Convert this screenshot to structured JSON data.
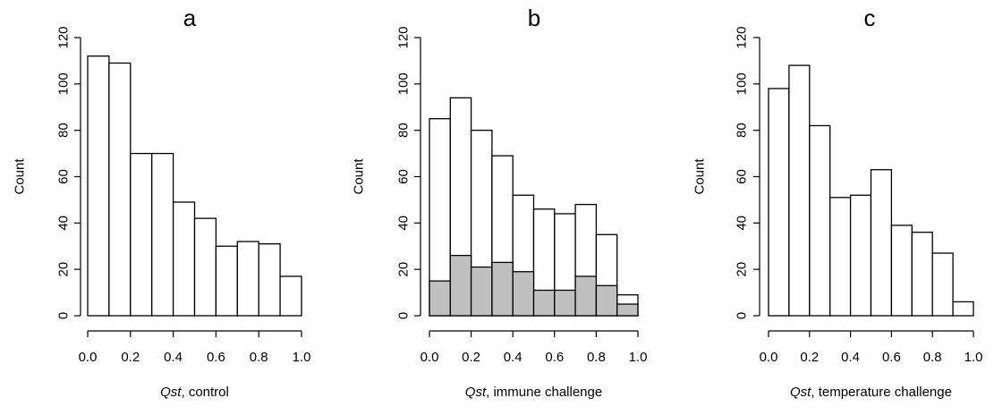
{
  "figure": {
    "panels": [
      {
        "letter": "a",
        "xlabel_italic": "Qst",
        "xlabel_rest": ", control",
        "ylabel": "Count"
      },
      {
        "letter": "b",
        "xlabel_italic": "Qst",
        "xlabel_rest": ", immune challenge",
        "ylabel": "Count"
      },
      {
        "letter": "c",
        "xlabel_italic": "Qst",
        "xlabel_rest": ", temperature challenge",
        "ylabel": "Count"
      }
    ]
  },
  "chart_data": [
    {
      "type": "bar",
      "title": "a",
      "xlabel": "Qst, control",
      "ylabel": "Count",
      "bin_edges": [
        0.0,
        0.1,
        0.2,
        0.3,
        0.4,
        0.5,
        0.6,
        0.7,
        0.8,
        0.9,
        1.0
      ],
      "series": [
        {
          "values": [
            112,
            109,
            70,
            70,
            49,
            42,
            30,
            32,
            31,
            17
          ],
          "color": "#ffffff"
        }
      ],
      "xlim": [
        0.0,
        1.0
      ],
      "ylim": [
        0,
        120
      ],
      "xticks": [
        "0.0",
        "0.2",
        "0.4",
        "0.6",
        "0.8",
        "1.0"
      ],
      "yticks": [
        "0",
        "20",
        "40",
        "60",
        "80",
        "100",
        "120"
      ]
    },
    {
      "type": "bar",
      "title": "b",
      "xlabel": "Qst, immune challenge",
      "ylabel": "Count",
      "bin_edges": [
        0.0,
        0.1,
        0.2,
        0.3,
        0.4,
        0.5,
        0.6,
        0.7,
        0.8,
        0.9,
        1.0
      ],
      "series": [
        {
          "values": [
            85,
            94,
            80,
            69,
            52,
            46,
            44,
            48,
            35,
            9
          ],
          "color": "#ffffff"
        },
        {
          "values": [
            15,
            26,
            21,
            23,
            19,
            11,
            11,
            17,
            13,
            5
          ],
          "color": "#c0c0c0"
        }
      ],
      "xlim": [
        0.0,
        1.0
      ],
      "ylim": [
        0,
        120
      ],
      "xticks": [
        "0.0",
        "0.2",
        "0.4",
        "0.6",
        "0.8",
        "1.0"
      ],
      "yticks": [
        "0",
        "20",
        "40",
        "60",
        "80",
        "100",
        "120"
      ]
    },
    {
      "type": "bar",
      "title": "c",
      "xlabel": "Qst, temperature challenge",
      "ylabel": "Count",
      "bin_edges": [
        0.0,
        0.1,
        0.2,
        0.3,
        0.4,
        0.5,
        0.6,
        0.7,
        0.8,
        0.9,
        1.0
      ],
      "series": [
        {
          "values": [
            98,
            108,
            82,
            51,
            52,
            63,
            39,
            36,
            27,
            6
          ],
          "color": "#ffffff"
        }
      ],
      "xlim": [
        0.0,
        1.0
      ],
      "ylim": [
        0,
        120
      ],
      "xticks": [
        "0.0",
        "0.2",
        "0.4",
        "0.6",
        "0.8",
        "1.0"
      ],
      "yticks": [
        "0",
        "20",
        "40",
        "60",
        "80",
        "100",
        "120"
      ]
    }
  ]
}
